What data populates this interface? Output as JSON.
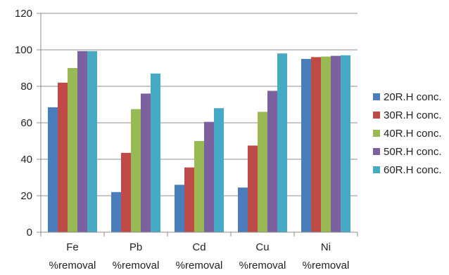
{
  "chart_data": {
    "type": "bar",
    "title": "",
    "xlabel": "",
    "ylabel": "",
    "ylim": [
      0,
      120
    ],
    "yticks": [
      0,
      20,
      40,
      60,
      80,
      100,
      120
    ],
    "grid": "horizontal",
    "legend_position": "right",
    "categories": [
      [
        "Fe",
        "%removal"
      ],
      [
        "Pb",
        "%removal"
      ],
      [
        "Cd",
        "%removal"
      ],
      [
        "Cu",
        "%removal"
      ],
      [
        "Ni",
        "%removal"
      ]
    ],
    "series": [
      {
        "name": "20R.H conc.",
        "color": "#4A7EBB",
        "values": [
          68.5,
          22,
          26,
          24.5,
          95
        ]
      },
      {
        "name": "30R.H conc.",
        "color": "#BE4B48",
        "values": [
          82,
          43.5,
          35.5,
          47.5,
          96
        ]
      },
      {
        "name": "40R.H conc.",
        "color": "#98B954",
        "values": [
          90,
          67.5,
          50,
          66,
          96.3
        ]
      },
      {
        "name": "50R.H conc.",
        "color": "#7D60A0",
        "values": [
          99.3,
          76,
          60.5,
          77.5,
          96.7
        ]
      },
      {
        "name": "60R.H conc.",
        "color": "#46AAC5",
        "values": [
          99.3,
          87,
          68,
          98,
          97
        ]
      }
    ]
  }
}
